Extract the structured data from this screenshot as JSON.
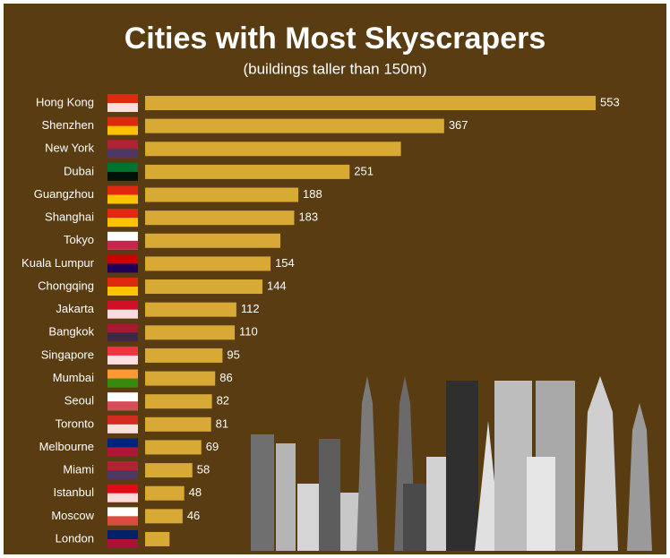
{
  "chart_data": {
    "type": "bar",
    "orientation": "horizontal",
    "title": "Cities with Most Skyscrapers",
    "subtitle": "(buildings taller than 150m)",
    "categories": [
      "Hong Kong",
      "Shenzhen",
      "New York",
      "Dubai",
      "Guangzhou",
      "Shanghai",
      "Tokyo",
      "Kuala Lumpur",
      "Chongqing",
      "Jakarta",
      "Bangkok",
      "Singapore",
      "Mumbai",
      "Seoul",
      "Toronto",
      "Melbourne",
      "Miami",
      "Istanbul",
      "Moscow",
      "London"
    ],
    "values": [
      553,
      367,
      314,
      251,
      188,
      183,
      166,
      154,
      144,
      112,
      110,
      95,
      86,
      82,
      81,
      69,
      58,
      48,
      46,
      30
    ],
    "value_labels": [
      "553",
      "367",
      null,
      "251",
      "188",
      "183",
      null,
      "154",
      "144",
      "112",
      "110",
      "95",
      "86",
      "82",
      "81",
      "69",
      "58",
      "48",
      "46",
      null
    ],
    "color": "#d8a935"
  }
}
